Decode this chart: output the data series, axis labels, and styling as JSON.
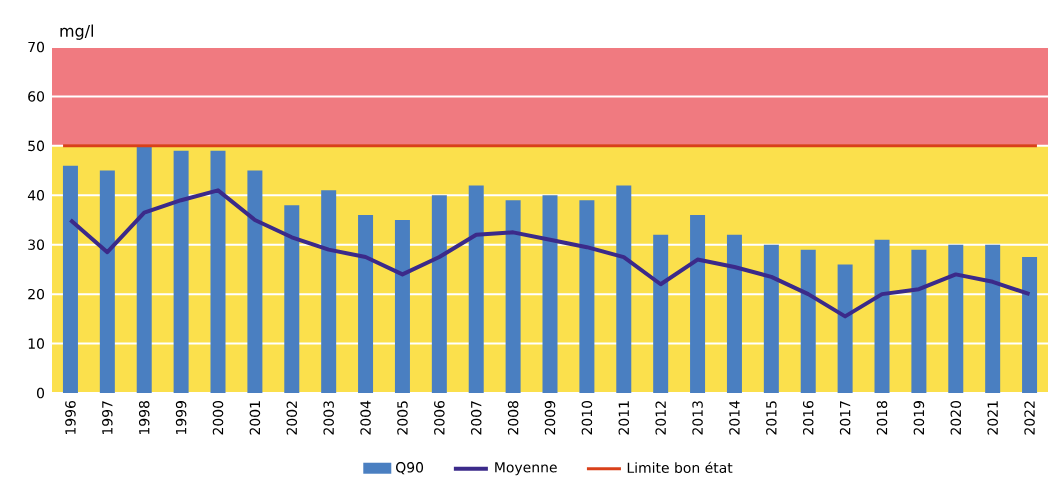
{
  "chart_data": {
    "type": "bar",
    "ylabel": "mg/l",
    "categories": [
      "1996",
      "1997",
      "1998",
      "1999",
      "2000",
      "2001",
      "2002",
      "2003",
      "2004",
      "2005",
      "2006",
      "2007",
      "2008",
      "2009",
      "2010",
      "2011",
      "2012",
      "2013",
      "2014",
      "2015",
      "2016",
      "2017",
      "2018",
      "2019",
      "2020",
      "2021",
      "2022"
    ],
    "series": [
      {
        "name": "Q90",
        "color": "#4a7fc1",
        "values": [
          46,
          45,
          50,
          49,
          49,
          45,
          38,
          41,
          36,
          35,
          40,
          42,
          39,
          40,
          39,
          42,
          32,
          36,
          32,
          30,
          29,
          26,
          31,
          29,
          30,
          30,
          27.5
        ]
      },
      {
        "name": "Moyenne",
        "type": "line",
        "color": "#3b2a8a",
        "values": [
          35,
          28.5,
          36.5,
          39,
          41,
          35,
          31.5,
          29,
          27.5,
          24,
          27.5,
          32,
          32.5,
          31,
          29.5,
          27.5,
          22,
          27,
          25.5,
          23.5,
          20,
          15.5,
          20,
          21,
          24,
          22.5,
          20
        ]
      }
    ],
    "ylim": [
      0,
      70
    ],
    "yticks": [
      0,
      10,
      20,
      30,
      40,
      50,
      60,
      70
    ],
    "ref_lines": [
      {
        "axis": "y",
        "value": 50,
        "label": "Limite bon état",
        "color": "#d9401a"
      }
    ],
    "bands": [
      {
        "axis": "y",
        "from": 50,
        "to": 70,
        "color": "#f07a80"
      },
      {
        "axis": "y",
        "from": 0,
        "to": 50,
        "color": "#fbe04c"
      }
    ],
    "grid": "y",
    "legend": "bottom",
    "marker": "none"
  }
}
